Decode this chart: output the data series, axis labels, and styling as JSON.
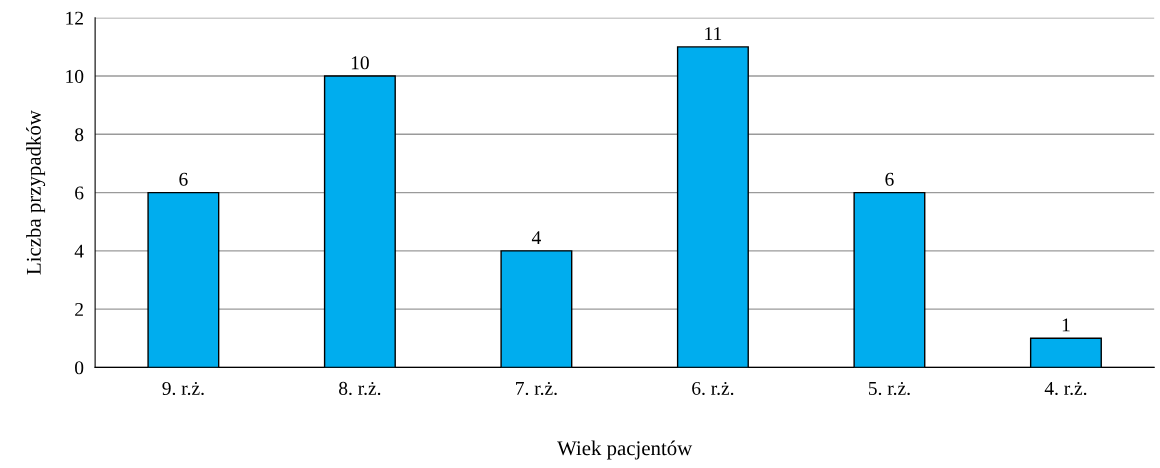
{
  "chart_data": {
    "type": "bar",
    "xlabel": "Wiek pacjentów",
    "ylabel": "Liczba przypadków",
    "categories": [
      "9. r.ż.",
      "8. r.ż.",
      "7. r.ż.",
      "6. r.ż.",
      "5. r.ż.",
      "4. r.ż."
    ],
    "values": [
      6,
      10,
      4,
      11,
      6,
      1
    ],
    "color": "#00adee",
    "ylim": [
      0,
      12
    ],
    "yticks": [
      0,
      2,
      4,
      6,
      8,
      10,
      12
    ],
    "grid": "y",
    "data_labels": true
  }
}
